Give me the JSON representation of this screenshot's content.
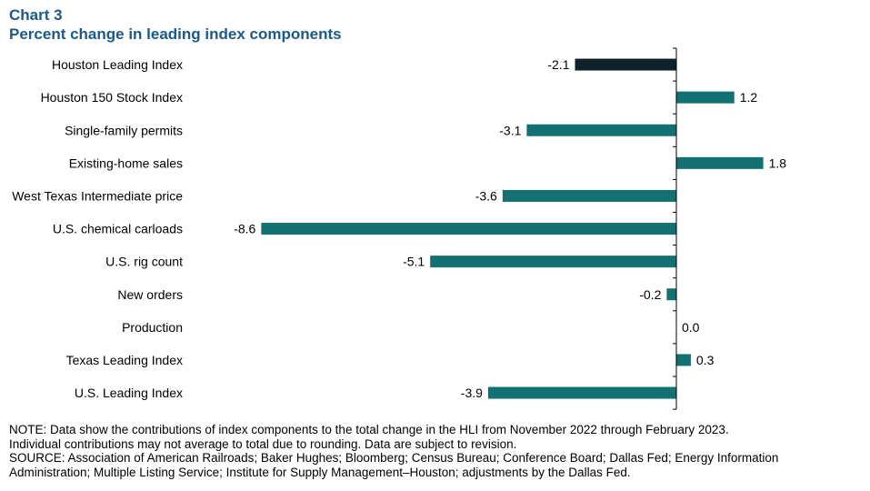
{
  "header": {
    "chart_number": "Chart 3",
    "chart_title": "Percent change in leading index components"
  },
  "notes": {
    "lines": [
      "NOTE: Data show the contributions of index components to the total change in the HLI from November 2022 through February 2023.",
      "Individual contributions may not average to total due to rounding. Data are subject to revision.",
      "SOURCE: Association of American Railroads; Baker Hughes; Bloomberg; Census Bureau; Conference Board; Dallas Fed; Energy Information",
      "Administration; Multiple Listing Service; Institute for Supply Management–Houston; adjustments by the Dallas Fed."
    ]
  },
  "chart_data": {
    "type": "bar",
    "orientation": "horizontal",
    "title": "Percent change in leading index components",
    "categories": [
      "Houston Leading Index",
      "Houston 150 Stock Index",
      "Single-family permits",
      "Existing-home sales",
      "West Texas Intermediate price",
      "U.S. chemical carloads",
      "U.S. rig count",
      "New orders",
      "Production",
      "Texas Leading Index",
      "U.S. Leading Index"
    ],
    "values": [
      -2.1,
      1.2,
      -3.1,
      1.8,
      -3.6,
      -8.6,
      -5.1,
      -0.2,
      0.0,
      0.3,
      -3.9
    ],
    "value_labels": [
      "-2.1",
      "1.2",
      "-3.1",
      "1.8",
      "-3.6",
      "-8.6",
      "-5.1",
      "-0.2",
      "0.0",
      "0.3",
      "-3.9"
    ],
    "colors": {
      "highlight": "#0e2329",
      "default": "#137172",
      "axis": "#000000"
    },
    "highlight_index": 0,
    "xlim": [
      -8.6,
      0.25
    ],
    "grid": false,
    "legend": "none"
  }
}
